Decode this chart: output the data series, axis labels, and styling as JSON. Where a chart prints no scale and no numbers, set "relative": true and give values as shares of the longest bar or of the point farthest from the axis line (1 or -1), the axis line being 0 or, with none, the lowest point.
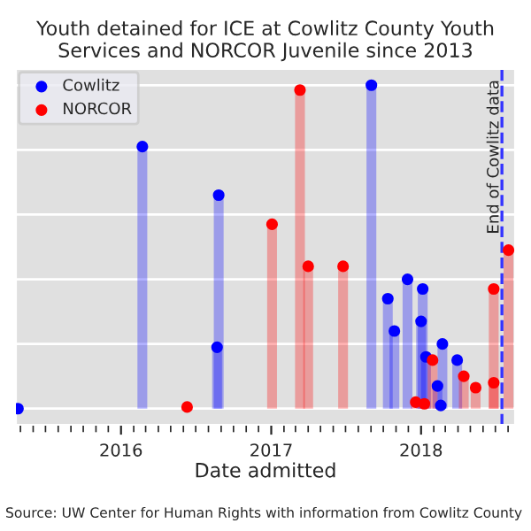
{
  "chart_data": {
    "type": "lollipop",
    "title": "Youth detained for ICE at Cowlitz County Youth Services and NORCOR Juvenile since 2013",
    "xlabel": "Date admitted",
    "annotations": [
      "Source: UW Center for Human Rights with information from Cowlitz County"
    ],
    "relative": true,
    "series": [
      {
        "name": "Cowlitz",
        "color": "#0000ff",
        "x": [
          "2015-04-25",
          "2016-02-22",
          "2016-08-26",
          "2016-08-22",
          "2017-09-02",
          "2017-10-12",
          "2017-10-28",
          "2017-11-29",
          "2018-01-05",
          "2018-01-01",
          "2018-01-13",
          "2018-02-10",
          "2018-02-22",
          "2018-02-18",
          "2018-03-30"
        ],
        "values": [
          0,
          0.81,
          0.66,
          0.19,
          1.0,
          0.34,
          0.24,
          0.4,
          0.37,
          0.27,
          0.16,
          0.07,
          0.2,
          0.01,
          0.15
        ]
      },
      {
        "name": "NORCOR",
        "color": "#ff0000",
        "x": [
          "2016-06-10",
          "2017-01-03",
          "2017-03-12",
          "2017-04-01",
          "2017-06-25",
          "2017-12-19",
          "2018-01-09",
          "2018-01-29",
          "2018-04-15",
          "2018-05-14",
          "2018-06-27",
          "2018-06-27",
          "2018-08-02"
        ],
        "values": [
          0.005,
          0.57,
          0.985,
          0.44,
          0.44,
          0.02,
          0.015,
          0.15,
          0.1,
          0.065,
          0.37,
          0.08,
          0.49
        ]
      }
    ],
    "xlim": [
      "2015-04-20",
      "2018-08-18"
    ],
    "xticks": [
      {
        "value": "2016",
        "label": "2016"
      },
      {
        "value": "2017",
        "label": "2017"
      },
      {
        "value": "2018",
        "label": "2018"
      }
    ],
    "ref_lines": [
      {
        "axis": "x",
        "value": "2018-07-17",
        "label": "End of Cowlitz data",
        "color": "#3333ff",
        "line_style": "dashed"
      }
    ],
    "grid": "y",
    "legend": "top left",
    "marker": "circle"
  }
}
